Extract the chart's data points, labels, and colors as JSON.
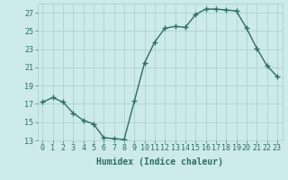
{
  "x": [
    0,
    1,
    2,
    3,
    4,
    5,
    6,
    7,
    8,
    9,
    10,
    11,
    12,
    13,
    14,
    15,
    16,
    17,
    18,
    19,
    20,
    21,
    22,
    23
  ],
  "y": [
    17.2,
    17.7,
    17.2,
    16.0,
    15.2,
    14.8,
    13.3,
    13.2,
    13.1,
    17.3,
    21.5,
    23.8,
    25.3,
    25.5,
    25.4,
    26.8,
    27.4,
    27.4,
    27.3,
    27.2,
    25.3,
    23.1,
    21.2,
    20.0
  ],
  "line_color": "#2d6e63",
  "marker": "+",
  "marker_size": 4,
  "bg_color": "#cceaea",
  "grid_color": "#aacccc",
  "tick_color": "#2d6e63",
  "label_color": "#2d6e63",
  "xlabel": "Humidex (Indice chaleur)",
  "ylim": [
    13,
    28
  ],
  "yticks": [
    13,
    15,
    17,
    19,
    21,
    23,
    25,
    27
  ],
  "xlim": [
    -0.5,
    23.5
  ],
  "xticks": [
    0,
    1,
    2,
    3,
    4,
    5,
    6,
    7,
    8,
    9,
    10,
    11,
    12,
    13,
    14,
    15,
    16,
    17,
    18,
    19,
    20,
    21,
    22,
    23
  ],
  "xtick_labels": [
    "0",
    "1",
    "2",
    "3",
    "4",
    "5",
    "6",
    "7",
    "8",
    "9",
    "10",
    "11",
    "12",
    "13",
    "14",
    "15",
    "16",
    "17",
    "18",
    "19",
    "20",
    "21",
    "22",
    "23"
  ],
  "xlabel_fontsize": 7,
  "tick_fontsize": 6,
  "linewidth": 1.0,
  "markeredgewidth": 1.0
}
